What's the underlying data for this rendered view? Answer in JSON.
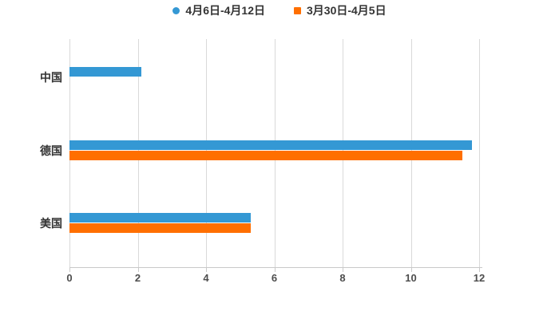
{
  "legend": {
    "items": [
      {
        "label": "4月6日-4月12日",
        "marker": "circle",
        "color": "#3498d4"
      },
      {
        "label": "3月30日-4月5日",
        "marker": "square",
        "color": "#ff6f00"
      }
    ]
  },
  "chart_data": {
    "type": "bar",
    "orientation": "horizontal",
    "title": "",
    "categories": [
      "中国",
      "德国",
      "美国"
    ],
    "series": [
      {
        "name": "4月6日-4月12日",
        "color": "#3498d4",
        "values": [
          2.1,
          11.8,
          5.3
        ]
      },
      {
        "name": "3月30日-4月5日",
        "color": "#ff6f00",
        "values": [
          null,
          11.5,
          5.3
        ]
      }
    ],
    "xticks": [
      0,
      2,
      4,
      6,
      8,
      10,
      12
    ],
    "xlim": [
      0,
      12.3
    ],
    "grid": true,
    "legend_position": "top",
    "colors": {
      "grid": "#d9d9d9",
      "axis": "#c9c9c9",
      "tick_label": "#4d4d4d",
      "category_label": "#333333",
      "background": "#ffffff"
    }
  }
}
